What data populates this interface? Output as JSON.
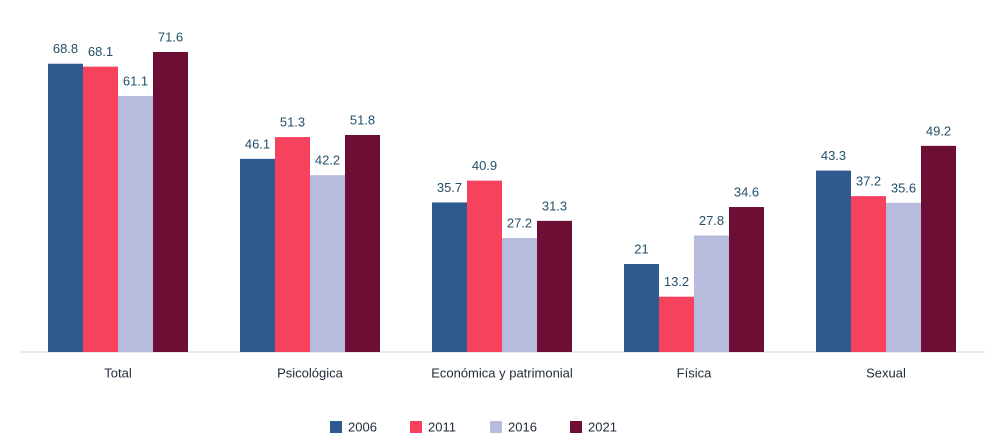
{
  "chart_data": {
    "type": "bar",
    "categories": [
      "Total",
      "Psicológica",
      "Económica y patrimonial",
      "Física",
      "Sexual"
    ],
    "series": [
      {
        "name": "2006",
        "color": "#2e5a8f",
        "values": [
          68.8,
          46.1,
          35.7,
          21,
          43.3
        ]
      },
      {
        "name": "2011",
        "color": "#f7425e",
        "values": [
          68.1,
          51.3,
          40.9,
          13.2,
          37.2
        ]
      },
      {
        "name": "2016",
        "color": "#b8bcdc",
        "values": [
          61.1,
          42.2,
          27.2,
          27.8,
          35.6
        ]
      },
      {
        "name": "2021",
        "color": "#6d0f35",
        "values": [
          71.6,
          51.8,
          31.3,
          34.6,
          49.2
        ]
      }
    ],
    "legend": "bottom"
  }
}
